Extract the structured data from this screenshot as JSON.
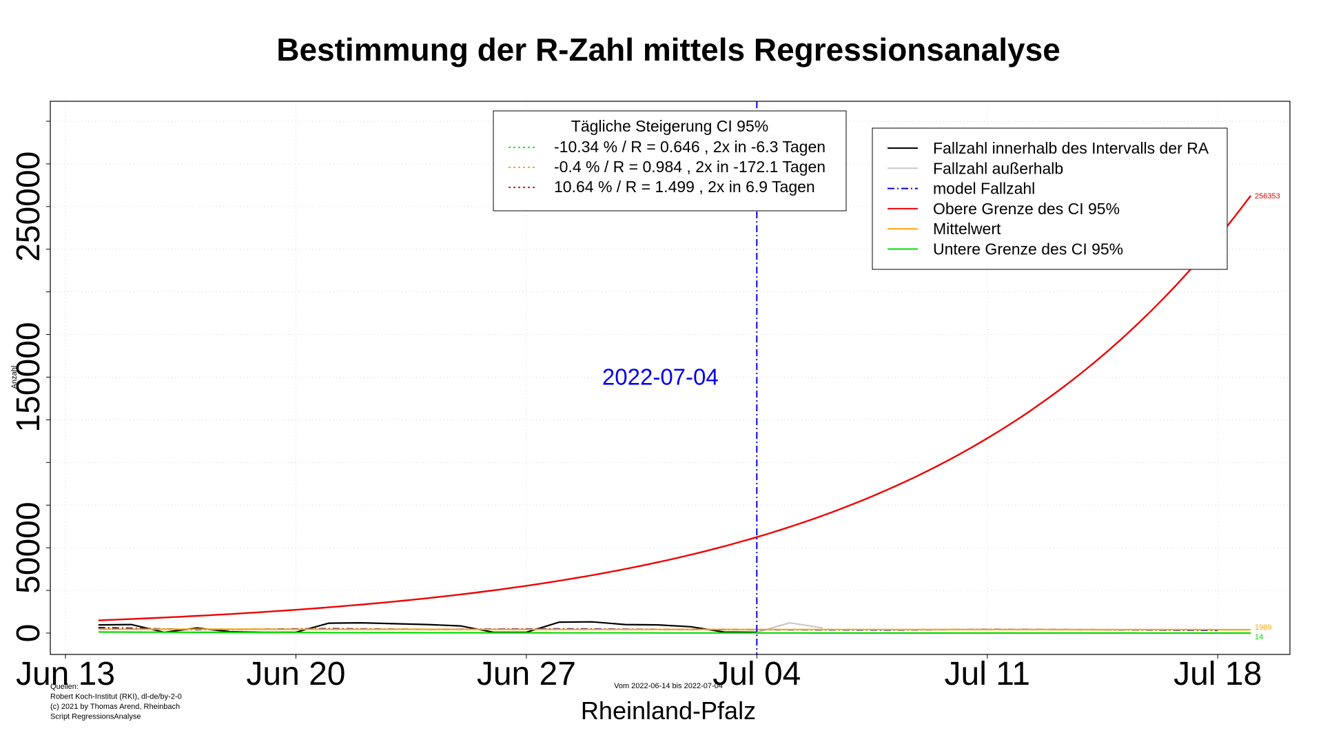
{
  "chart_data": {
    "type": "line",
    "title": "Bestimmung der R-Zahl mittels Regressionsanalyse",
    "xlabel": "Rheinland-Pfalz",
    "ylabel": "Anzahl",
    "subtitle": "Vom 2022-06-14 bis 2022-07-04",
    "x_range": [
      "2022-06-13",
      "2022-07-19"
    ],
    "ylim": [
      0,
      300000
    ],
    "x_ticks": [
      {
        "date": "2022-06-13",
        "label": "Jun 13"
      },
      {
        "date": "2022-06-20",
        "label": "Jun 20"
      },
      {
        "date": "2022-06-27",
        "label": "Jun 27"
      },
      {
        "date": "2022-07-04",
        "label": "Jul 04"
      },
      {
        "date": "2022-07-11",
        "label": "Jul 11"
      },
      {
        "date": "2022-07-18",
        "label": "Jul 18"
      }
    ],
    "y_ticks": [
      0,
      50000,
      150000,
      250000
    ],
    "grid": true,
    "vline": {
      "date": "2022-07-04",
      "label": "2022-07-04",
      "color": "#0000ee"
    },
    "series": [
      {
        "name": "Fallzahl innerhalb des Intervalls der RA",
        "color": "#000000",
        "dash": "solid",
        "x": [
          "2022-06-14",
          "2022-06-15",
          "2022-06-16",
          "2022-06-17",
          "2022-06-18",
          "2022-06-19",
          "2022-06-20",
          "2022-06-21",
          "2022-06-22",
          "2022-06-23",
          "2022-06-24",
          "2022-06-25",
          "2022-06-26",
          "2022-06-27",
          "2022-06-28",
          "2022-06-29",
          "2022-06-30",
          "2022-07-01",
          "2022-07-02",
          "2022-07-03",
          "2022-07-04"
        ],
        "values": [
          4800,
          5000,
          500,
          3000,
          800,
          500,
          500,
          5800,
          6000,
          5500,
          5000,
          4200,
          500,
          500,
          6400,
          6600,
          5000,
          4800,
          3700,
          600,
          500
        ]
      },
      {
        "name": "Fallzahl außerhalb",
        "color": "#c8c8c8",
        "dash": "solid",
        "x": [
          "2022-07-04",
          "2022-07-05",
          "2022-07-06"
        ],
        "values": [
          500,
          6000,
          3000
        ]
      },
      {
        "name": "model Fallzahl",
        "color": "#0000cc",
        "dash": "dotdash",
        "x": [
          "2022-06-14",
          "2022-06-17",
          "2022-06-21",
          "2022-06-24",
          "2022-06-28",
          "2022-07-01",
          "2022-07-04",
          "2022-07-08",
          "2022-07-11",
          "2022-07-14",
          "2022-07-18"
        ],
        "values": [
          3200,
          2000,
          2600,
          2200,
          2500,
          2200,
          2000,
          1800,
          2200,
          2000,
          1600
        ]
      },
      {
        "name": "Obere Grenze des CI 95%",
        "color": "#ee0000",
        "dash": "solid",
        "growth": 1.1064,
        "start": "2022-06-14",
        "end": "2022-07-19",
        "end_value": 256353
      },
      {
        "name": "Mittelwert",
        "color": "#ffa500",
        "dash": "solid",
        "growth": 0.996,
        "start": "2022-06-14",
        "end": "2022-07-19",
        "end_value": 1989
      },
      {
        "name": "Untere Grenze des CI 95%",
        "color": "#00dd00",
        "dash": "solid",
        "growth": 0.8966,
        "start": "2022-06-14",
        "end": "2022-07-19",
        "end_value": 14
      }
    ],
    "end_labels": [
      {
        "text": "256353",
        "value": 256353,
        "color": "#ee0000"
      },
      {
        "text": "1989",
        "value": 1989,
        "color": "#ffa500"
      },
      {
        "text": "14",
        "value": 14,
        "color": "#00dd00"
      }
    ],
    "ci_box": {
      "title": "Tägliche Steigerung CI  95%",
      "entries": [
        {
          "color": "#00ee00",
          "text": "-10.34 % / R = 0.646 , 2x in -6.3 Tagen"
        },
        {
          "color": "#ffa500",
          "text": "-0.4 % / R = 0.984 , 2x in -172.1 Tagen"
        },
        {
          "color": "#ee0000",
          "text": "10.64 % / R = 1.499 , 2x in 6.9 Tagen"
        }
      ]
    },
    "legend": [
      {
        "text": "Fallzahl innerhalb des Intervalls der RA",
        "color": "#000000",
        "dash": "solid"
      },
      {
        "text": "Fallzahl außerhalb",
        "color": "#c8c8c8",
        "dash": "solid"
      },
      {
        "text": "model Fallzahl",
        "color": "#0000cc",
        "dash": "dotdash"
      },
      {
        "text": "Obere Grenze des CI 95%",
        "color": "#ee0000",
        "dash": "solid"
      },
      {
        "text": "Mittelwert",
        "color": "#ffa500",
        "dash": "solid"
      },
      {
        "text": "Untere Grenze des CI 95%",
        "color": "#00dd00",
        "dash": "solid"
      }
    ],
    "legend_placement": "top-right",
    "sources": [
      "Quellen:",
      "Robert Koch-Institut (RKI), dl-de/by-2-0",
      "(c) 2021 by Thomas Arend, Rheinbach",
      "Script RegressionsAnalyse"
    ]
  }
}
